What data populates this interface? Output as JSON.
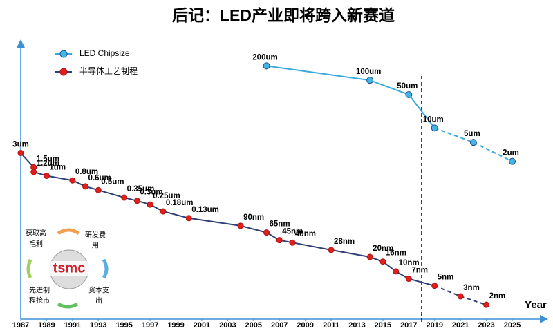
{
  "chart_data": {
    "type": "line",
    "title": "后记：LED产业即将跨入新赛道",
    "x_label": "Year",
    "xlim": [
      1987,
      2025
    ],
    "xticks": [
      1987,
      1989,
      1991,
      1993,
      1995,
      1997,
      1999,
      2001,
      2003,
      2005,
      2007,
      2009,
      2011,
      2013,
      2015,
      2017,
      2019,
      2021,
      2023,
      2025
    ],
    "ylim": [
      1,
      1000000
    ],
    "log_scale": true,
    "legend": "top-left",
    "vline": 2018,
    "dashed_after": 2019,
    "series": [
      {
        "name": "LED Chipsize",
        "color": "#3aa9dc",
        "marker_color": "#45b5e8",
        "x": [
          2006,
          2014,
          2017,
          2019,
          2022,
          2025
        ],
        "values": [
          200000,
          100000,
          50000,
          10000,
          5000,
          2000
        ],
        "value_labels": [
          "200um",
          "100um",
          "50um",
          "10um",
          "5um",
          "2um"
        ]
      },
      {
        "name": "半导体工艺制程",
        "color": "#2f3f78",
        "marker_color": "#e0201b",
        "x": [
          1987,
          1988,
          1988,
          1989,
          1991,
          1992,
          1993,
          1995,
          1996,
          1997,
          1998,
          2000,
          2004,
          2006,
          2007,
          2008,
          2011,
          2014,
          2015,
          2016,
          2017,
          2019,
          2021,
          2023
        ],
        "values": [
          3000,
          1500,
          1200,
          1000,
          800,
          600,
          500,
          350,
          300,
          250,
          180,
          130,
          90,
          65,
          45,
          40,
          28,
          20,
          16,
          10,
          7,
          5,
          3,
          2
        ],
        "value_labels": [
          "3um",
          "1.5um",
          "1.2um",
          "1um",
          "0.8um",
          "0.6um",
          "0.5um",
          "0.35um",
          "0.3um",
          "0.25um",
          "0.18um",
          "0.13um",
          "90nm",
          "65nm",
          "45nm",
          "40nm",
          "28nm",
          "20nm",
          "16nm",
          "10nm",
          "7nm",
          "5nm",
          "3nm",
          "2nm"
        ]
      }
    ]
  },
  "inset": {
    "logo": "tsmc",
    "cycle": [
      [
        "获取高",
        "毛利"
      ],
      [
        "研发费",
        "用"
      ],
      [
        "资本支",
        "出"
      ],
      [
        "先进制",
        "程抢市"
      ]
    ]
  }
}
